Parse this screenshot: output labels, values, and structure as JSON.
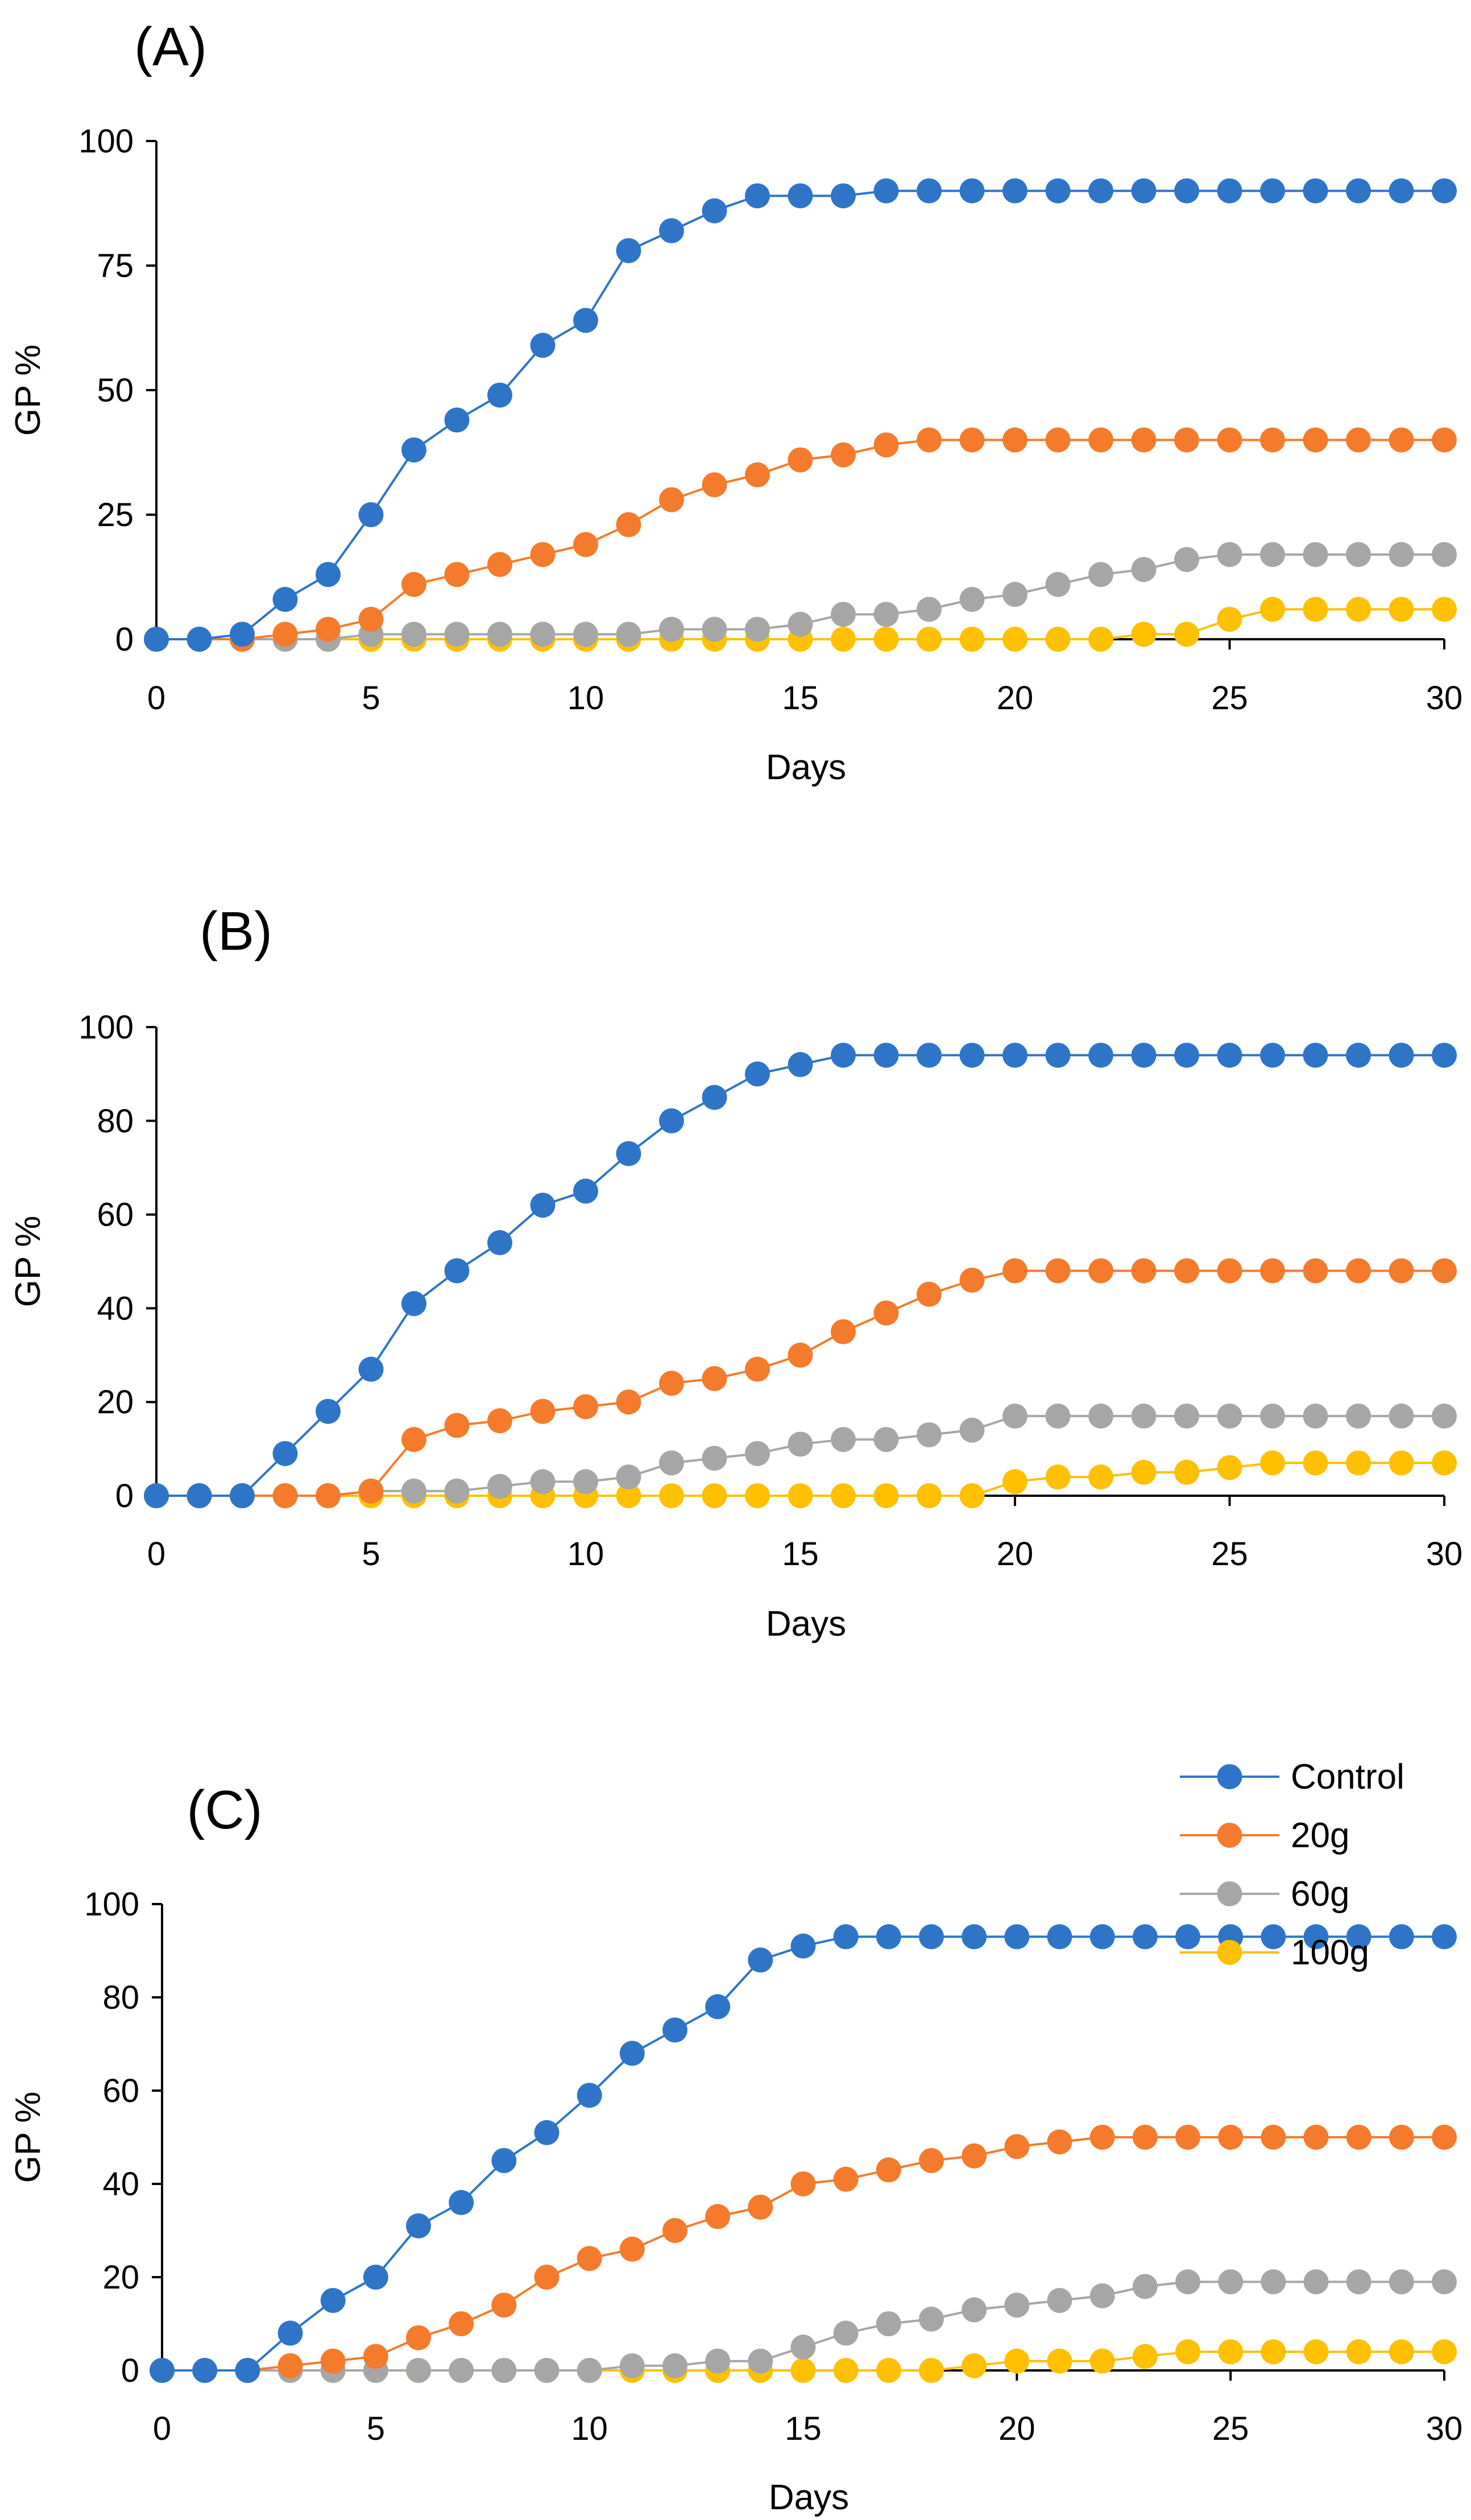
{
  "figure": {
    "legend": [
      "Control",
      "20g",
      "60g",
      "100g"
    ],
    "colors": {
      "Control": "#2E75C8",
      "20g": "#F47B2B",
      "60g": "#A6A6A6",
      "100g": "#FFC000"
    }
  },
  "chart_data": [
    {
      "type": "line",
      "panel_label": "(A)",
      "xlabel": "Days",
      "ylabel": "GP %",
      "xlim": [
        0,
        30
      ],
      "ylim": [
        0,
        100
      ],
      "x_ticks": [
        0,
        5,
        10,
        15,
        20,
        25,
        30
      ],
      "y_ticks": [
        0,
        25,
        50,
        75,
        100
      ],
      "x": [
        0,
        1,
        2,
        3,
        4,
        5,
        6,
        7,
        8,
        9,
        10,
        11,
        12,
        13,
        14,
        15,
        16,
        17,
        18,
        19,
        20,
        21,
        22,
        23,
        24,
        25,
        26,
        27,
        28,
        29,
        30
      ],
      "series": [
        {
          "name": "Control",
          "values": [
            0,
            0,
            1,
            8,
            13,
            25,
            38,
            44,
            49,
            59,
            64,
            78,
            82,
            86,
            89,
            89,
            89,
            90,
            90,
            90,
            90,
            90,
            90,
            90,
            90,
            90,
            90,
            90,
            90,
            90,
            90
          ]
        },
        {
          "name": "20g",
          "values": [
            0,
            0,
            0,
            1,
            2,
            4,
            11,
            13,
            15,
            17,
            19,
            23,
            28,
            31,
            33,
            36,
            37,
            39,
            40,
            40,
            40,
            40,
            40,
            40,
            40,
            40,
            40,
            40,
            40,
            40,
            40
          ]
        },
        {
          "name": "60g",
          "values": [
            0,
            0,
            0,
            0,
            0,
            1,
            1,
            1,
            1,
            1,
            1,
            1,
            2,
            2,
            2,
            3,
            5,
            5,
            6,
            8,
            9,
            11,
            13,
            14,
            16,
            17,
            17,
            17,
            17,
            17,
            17
          ]
        },
        {
          "name": "100g",
          "values": [
            0,
            0,
            0,
            0,
            0,
            0,
            0,
            0,
            0,
            0,
            0,
            0,
            0,
            0,
            0,
            0,
            0,
            0,
            0,
            0,
            0,
            0,
            0,
            1,
            1,
            4,
            6,
            6,
            6,
            6,
            6
          ]
        }
      ],
      "legend": false
    },
    {
      "type": "line",
      "panel_label": "(B)",
      "xlabel": "Days",
      "ylabel": "GP %",
      "xlim": [
        0,
        30
      ],
      "ylim": [
        0,
        100
      ],
      "x_ticks": [
        0,
        5,
        10,
        15,
        20,
        25,
        30
      ],
      "y_ticks": [
        0,
        20,
        40,
        60,
        80,
        100
      ],
      "x": [
        0,
        1,
        2,
        3,
        4,
        5,
        6,
        7,
        8,
        9,
        10,
        11,
        12,
        13,
        14,
        15,
        16,
        17,
        18,
        19,
        20,
        21,
        22,
        23,
        24,
        25,
        26,
        27,
        28,
        29,
        30
      ],
      "series": [
        {
          "name": "Control",
          "values": [
            0,
            0,
            0,
            9,
            18,
            27,
            41,
            48,
            54,
            62,
            65,
            73,
            80,
            85,
            90,
            92,
            94,
            94,
            94,
            94,
            94,
            94,
            94,
            94,
            94,
            94,
            94,
            94,
            94,
            94,
            94
          ]
        },
        {
          "name": "20g",
          "values": [
            0,
            0,
            0,
            0,
            0,
            1,
            12,
            15,
            16,
            18,
            19,
            20,
            24,
            25,
            27,
            30,
            35,
            39,
            43,
            46,
            48,
            48,
            48,
            48,
            48,
            48,
            48,
            48,
            48,
            48,
            48
          ]
        },
        {
          "name": "60g",
          "values": [
            0,
            0,
            0,
            0,
            0,
            1,
            1,
            1,
            2,
            3,
            3,
            4,
            7,
            8,
            9,
            11,
            12,
            12,
            13,
            14,
            17,
            17,
            17,
            17,
            17,
            17,
            17,
            17,
            17,
            17,
            17
          ]
        },
        {
          "name": "100g",
          "values": [
            0,
            0,
            0,
            0,
            0,
            0,
            0,
            0,
            0,
            0,
            0,
            0,
            0,
            0,
            0,
            0,
            0,
            0,
            0,
            0,
            3,
            4,
            4,
            5,
            5,
            6,
            7,
            7,
            7,
            7,
            7
          ]
        }
      ],
      "legend": false
    },
    {
      "type": "line",
      "panel_label": "(C)",
      "xlabel": "Days",
      "ylabel": "GP %",
      "xlim": [
        0,
        30
      ],
      "ylim": [
        0,
        100
      ],
      "x_ticks": [
        0,
        5,
        10,
        15,
        20,
        25,
        30
      ],
      "y_ticks": [
        0,
        20,
        40,
        60,
        80,
        100
      ],
      "x": [
        0,
        1,
        2,
        3,
        4,
        5,
        6,
        7,
        8,
        9,
        10,
        11,
        12,
        13,
        14,
        15,
        16,
        17,
        18,
        19,
        20,
        21,
        22,
        23,
        24,
        25,
        26,
        27,
        28,
        29,
        30
      ],
      "series": [
        {
          "name": "Control",
          "values": [
            0,
            0,
            0,
            8,
            15,
            20,
            31,
            36,
            45,
            51,
            59,
            68,
            73,
            78,
            88,
            91,
            93,
            93,
            93,
            93,
            93,
            93,
            93,
            93,
            93,
            93,
            93,
            93,
            93,
            93,
            93
          ]
        },
        {
          "name": "20g",
          "values": [
            0,
            0,
            0,
            1,
            2,
            3,
            7,
            10,
            14,
            20,
            24,
            26,
            30,
            33,
            35,
            40,
            41,
            43,
            45,
            46,
            48,
            49,
            50,
            50,
            50,
            50,
            50,
            50,
            50,
            50,
            50
          ]
        },
        {
          "name": "60g",
          "values": [
            0,
            0,
            0,
            0,
            0,
            0,
            0,
            0,
            0,
            0,
            0,
            1,
            1,
            2,
            2,
            5,
            8,
            10,
            11,
            13,
            14,
            15,
            16,
            18,
            19,
            19,
            19,
            19,
            19,
            19,
            19
          ]
        },
        {
          "name": "100g",
          "values": [
            0,
            0,
            0,
            0,
            0,
            0,
            0,
            0,
            0,
            0,
            0,
            0,
            0,
            0,
            0,
            0,
            0,
            0,
            0,
            1,
            2,
            2,
            2,
            3,
            4,
            4,
            4,
            4,
            4,
            4,
            4
          ]
        }
      ],
      "legend": true
    }
  ]
}
